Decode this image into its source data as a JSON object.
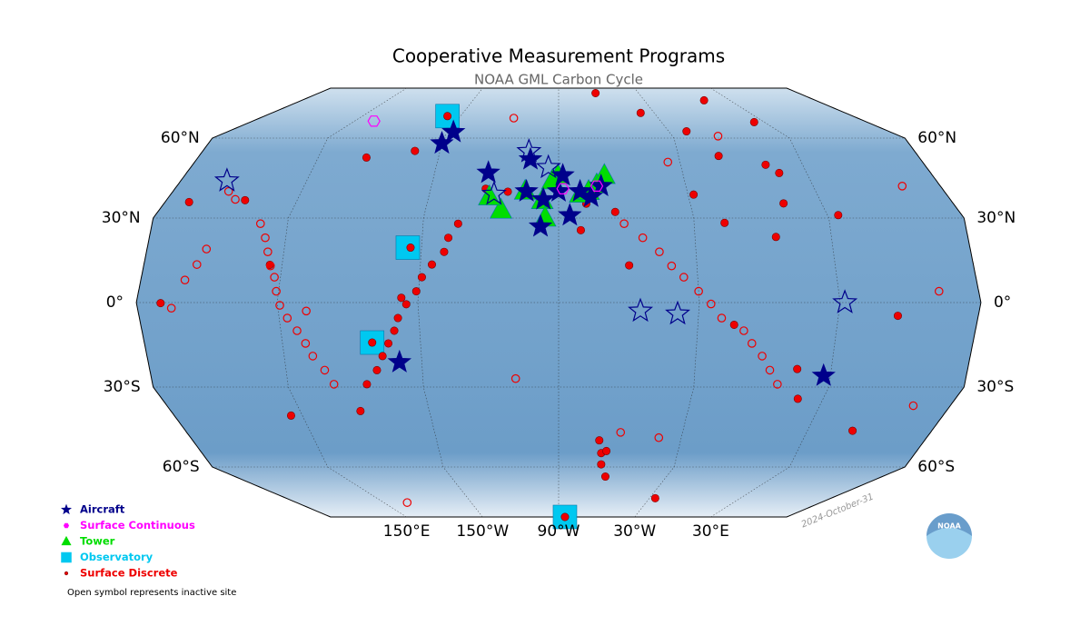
{
  "map": {
    "title": "Cooperative Measurement Programs",
    "subtitle": "NOAA GML Carbon Cycle",
    "date": "2024-October-31",
    "logo": "NOAA",
    "note": "Open symbol represents inactive site",
    "parallels": [
      {
        "value": 60,
        "label": "60°N"
      },
      {
        "value": 30,
        "label": "30°N"
      },
      {
        "value": 0,
        "label": "0°"
      },
      {
        "value": -30,
        "label": "30°S"
      },
      {
        "value": -60,
        "label": "60°S"
      }
    ],
    "meridians": [
      {
        "value": 150,
        "label": "150°E"
      },
      {
        "value": -150,
        "label": "150°W"
      },
      {
        "value": -90,
        "label": "90°W"
      },
      {
        "value": -30,
        "label": "30°W"
      },
      {
        "value": 30,
        "label": "30°E"
      }
    ],
    "programs": [
      {
        "label": "Observatory",
        "color": "#00c8f0",
        "marker": "square",
        "sites": [
          {
            "lon": -158,
            "lat": 71,
            "active": true
          },
          {
            "lon": -156,
            "lat": 19.5,
            "active": true
          },
          {
            "lon": -171,
            "lat": -14.2,
            "active": true
          },
          {
            "lon": -85,
            "lat": -85,
            "active": true
          }
        ]
      },
      {
        "label": "Surface Discrete",
        "color": "#ee0000",
        "marker": "circle",
        "sites": [
          {
            "lon": -62.3,
            "lat": 82.5,
            "active": true
          },
          {
            "lon": -158,
            "lat": 71,
            "active": true
          },
          {
            "lon": -38.5,
            "lat": 72.6,
            "active": true
          },
          {
            "lon": 11.9,
            "lat": 78.9,
            "active": true
          },
          {
            "lon": 24.1,
            "lat": 68,
            "active": true
          },
          {
            "lon": -20.3,
            "lat": 63.4,
            "active": true
          },
          {
            "lon": -9.9,
            "lat": 53.3,
            "active": true
          },
          {
            "lon": 16.7,
            "lat": 46.9,
            "active": true
          },
          {
            "lon": 11.8,
            "lat": 50,
            "active": true
          },
          {
            "lon": 12.6,
            "lat": 35.5,
            "active": true
          },
          {
            "lon": -27.4,
            "lat": 38.8,
            "active": true
          },
          {
            "lon": -16.5,
            "lat": 28.3,
            "active": true
          },
          {
            "lon": -113.7,
            "lat": 39.9,
            "active": true
          },
          {
            "lon": -105.6,
            "lat": 40.1,
            "active": true
          },
          {
            "lon": -97.5,
            "lat": 36.6,
            "active": true
          },
          {
            "lon": -90.3,
            "lat": 45.9,
            "active": true
          },
          {
            "lon": -80.2,
            "lat": 25.7,
            "active": true
          },
          {
            "lon": -64.6,
            "lat": 32.3,
            "active": true
          },
          {
            "lon": -59.4,
            "lat": 13.2,
            "active": true
          },
          {
            "lon": -14.4,
            "lat": -7.9,
            "active": true
          },
          {
            "lon": 55.5,
            "lat": -4.7,
            "active": true
          },
          {
            "lon": 18.5,
            "lat": -34.4,
            "active": true
          },
          {
            "lon": 15,
            "lat": -23.6,
            "active": true
          },
          {
            "lon": 34.8,
            "lat": 31.1,
            "active": true
          },
          {
            "lon": 5.6,
            "lat": 23.3,
            "active": true
          },
          {
            "lon": 51.8,
            "lat": -46.4,
            "active": true
          },
          {
            "lon": -68.5,
            "lat": -54.8,
            "active": true
          },
          {
            "lon": -64,
            "lat": -64.8,
            "active": true
          },
          {
            "lon": -26.2,
            "lat": -75.6,
            "active": true
          },
          {
            "lon": -70,
            "lat": -50,
            "active": true
          },
          {
            "lon": -66,
            "lat": -54,
            "active": true
          },
          {
            "lon": -68,
            "lat": -59,
            "active": true
          },
          {
            "lon": 144.7,
            "lat": -40.7,
            "active": true
          },
          {
            "lon": 144.7,
            "lat": 13.4,
            "active": true
          },
          {
            "lon": 126.1,
            "lat": 36.7,
            "active": true
          },
          {
            "lon": 101,
            "lat": 36,
            "active": true
          },
          {
            "lon": 100.3,
            "lat": -0.2,
            "active": true
          },
          {
            "lon": -162.7,
            "lat": 55.2,
            "active": true
          },
          {
            "lon": 174.1,
            "lat": 52.7,
            "active": true
          },
          {
            "lon": -124.2,
            "lat": 41,
            "active": true
          },
          {
            "lon": -77.4,
            "lat": 35.4,
            "active": true
          },
          {
            "lon": -157.2,
            "lat": 1.7,
            "active": true
          },
          {
            "lon": -154.8,
            "lat": 19.5,
            "active": true
          },
          {
            "lon": -171,
            "lat": -14.2,
            "active": true
          },
          {
            "lon": -85,
            "lat": -85,
            "active": true
          },
          {
            "lon": 178,
            "lat": -39,
            "active": true
          },
          {
            "lon": -175,
            "lat": -29,
            "active": true
          },
          {
            "lon": -170,
            "lat": -24,
            "active": true
          },
          {
            "lon": -167,
            "lat": -19,
            "active": true
          },
          {
            "lon": -164,
            "lat": -14.5,
            "active": true
          },
          {
            "lon": -161,
            "lat": -10,
            "active": true
          },
          {
            "lon": -159,
            "lat": -5.5,
            "active": true
          },
          {
            "lon": -155,
            "lat": -0.6,
            "active": true
          },
          {
            "lon": -151,
            "lat": 4,
            "active": true
          },
          {
            "lon": -149,
            "lat": 9,
            "active": true
          },
          {
            "lon": -145,
            "lat": 13.5,
            "active": true
          },
          {
            "lon": -140,
            "lat": 18,
            "active": true
          },
          {
            "lon": -138.5,
            "lat": 23,
            "active": true
          },
          {
            "lon": -134.5,
            "lat": 28,
            "active": true
          },
          {
            "lon": 116,
            "lat": 40,
            "active": false
          },
          {
            "lon": 121.4,
            "lat": 37,
            "active": false
          },
          {
            "lon": 138,
            "lat": 28,
            "active": false
          },
          {
            "lon": 141,
            "lat": 23,
            "active": false
          },
          {
            "lon": 143,
            "lat": 18,
            "active": false
          },
          {
            "lon": 145,
            "lat": 13,
            "active": false
          },
          {
            "lon": 147.4,
            "lat": 9,
            "active": false
          },
          {
            "lon": 149,
            "lat": 4,
            "active": false
          },
          {
            "lon": 151,
            "lat": -1,
            "active": false
          },
          {
            "lon": 153.5,
            "lat": -5.5,
            "active": false
          },
          {
            "lon": 157,
            "lat": -10,
            "active": false
          },
          {
            "lon": 160,
            "lat": -14.5,
            "active": false
          },
          {
            "lon": 162.5,
            "lat": -19,
            "active": false
          },
          {
            "lon": 167,
            "lat": -24,
            "active": false
          },
          {
            "lon": 170.4,
            "lat": -29,
            "active": false
          },
          {
            "lon": 104.5,
            "lat": -2,
            "active": false
          },
          {
            "lon": 109,
            "lat": 8,
            "active": false
          },
          {
            "lon": 113,
            "lat": 13.5,
            "active": false
          },
          {
            "lon": 116,
            "lat": 19,
            "active": false
          },
          {
            "lon": -61,
            "lat": 28,
            "active": false
          },
          {
            "lon": -53,
            "lat": 23,
            "active": false
          },
          {
            "lon": -46,
            "lat": 18,
            "active": false
          },
          {
            "lon": -41,
            "lat": 13,
            "active": false
          },
          {
            "lon": -36,
            "lat": 9,
            "active": false
          },
          {
            "lon": -30,
            "lat": 4,
            "active": false
          },
          {
            "lon": -25,
            "lat": -0.5,
            "active": false
          },
          {
            "lon": -20,
            "lat": -5.5,
            "active": false
          },
          {
            "lon": -10,
            "lat": -10,
            "active": false
          },
          {
            "lon": -6,
            "lat": -14.5,
            "active": false
          },
          {
            "lon": -1,
            "lat": -19,
            "active": false
          },
          {
            "lon": 3,
            "lat": -24,
            "active": false
          },
          {
            "lon": 7,
            "lat": -29,
            "active": false
          },
          {
            "lon": -117,
            "lat": 70,
            "active": false
          },
          {
            "lon": -36,
            "lat": 51,
            "active": false
          },
          {
            "lon": -6,
            "lat": 61,
            "active": false
          },
          {
            "lon": 73,
            "lat": 4,
            "active": false
          },
          {
            "lon": 72,
            "lat": 42,
            "active": false
          },
          {
            "lon": 73,
            "lat": -37,
            "active": false
          },
          {
            "lon": -109,
            "lat": -27,
            "active": false
          },
          {
            "lon": -41,
            "lat": -49,
            "active": false
          },
          {
            "lon": -60,
            "lat": -47,
            "active": false
          },
          {
            "lon": 166,
            "lat": -77.8,
            "active": false
          },
          {
            "lon": 162,
            "lat": -3,
            "active": false
          }
        ]
      },
      {
        "label": "Tower",
        "color": "#00dd00",
        "marker": "triangle",
        "sites": [
          {
            "lon": -97.5,
            "lat": 36.6,
            "active": true
          },
          {
            "lon": -105.6,
            "lat": 40.1,
            "active": true
          },
          {
            "lon": -80,
            "lat": 39,
            "active": true
          },
          {
            "lon": -90.3,
            "lat": 45.9,
            "active": true
          },
          {
            "lon": -72,
            "lat": 42.5,
            "active": true
          },
          {
            "lon": -68,
            "lat": 46,
            "active": true
          },
          {
            "lon": -116,
            "lat": 33,
            "active": true
          },
          {
            "lon": -96,
            "lat": 30,
            "active": true
          },
          {
            "lon": -122,
            "lat": 38,
            "active": true
          },
          {
            "lon": -76,
            "lat": 40,
            "active": true
          },
          {
            "lon": -93,
            "lat": 44,
            "active": true
          }
        ]
      },
      {
        "label": "Aircraft",
        "color": "#00008b",
        "marker": "star",
        "sites": [
          {
            "lon": -150,
            "lat": 58,
            "active": true
          },
          {
            "lon": -147,
            "lat": 63,
            "active": true
          },
          {
            "lon": -159.8,
            "lat": -21.2,
            "active": true
          },
          {
            "lon": -124,
            "lat": 47,
            "active": true
          },
          {
            "lon": -104,
            "lat": 52,
            "active": true
          },
          {
            "lon": -105,
            "lat": 40,
            "active": true
          },
          {
            "lon": -97,
            "lat": 37,
            "active": true
          },
          {
            "lon": -90,
            "lat": 40,
            "active": true
          },
          {
            "lon": -80,
            "lat": 40,
            "active": true
          },
          {
            "lon": -75,
            "lat": 38,
            "active": true
          },
          {
            "lon": -70,
            "lat": 42,
            "active": true
          },
          {
            "lon": -88,
            "lat": 46,
            "active": true
          },
          {
            "lon": -98,
            "lat": 27,
            "active": true
          },
          {
            "lon": -85,
            "lat": 31,
            "active": true
          },
          {
            "lon": 27,
            "lat": -26,
            "active": true
          },
          {
            "lon": 112,
            "lat": 44,
            "active": false
          },
          {
            "lon": -55,
            "lat": -3,
            "active": false
          },
          {
            "lon": -39,
            "lat": -4,
            "active": false
          },
          {
            "lon": 32,
            "lat": 0,
            "active": false
          },
          {
            "lon": -105,
            "lat": 55,
            "active": false
          },
          {
            "lon": -95,
            "lat": 49,
            "active": false
          },
          {
            "lon": -120,
            "lat": 39,
            "active": false
          }
        ],
        "fill_inactive": "#00c8f0"
      },
      {
        "label": "Surface Continuous",
        "color": "#ff00ff",
        "marker": "hexagon",
        "sites": [
          {
            "lon": 161.4,
            "lat": 68.5,
            "active": false
          },
          {
            "lon": -88,
            "lat": 41,
            "active": false
          },
          {
            "lon": -72,
            "lat": 42,
            "active": false
          }
        ]
      }
    ]
  }
}
